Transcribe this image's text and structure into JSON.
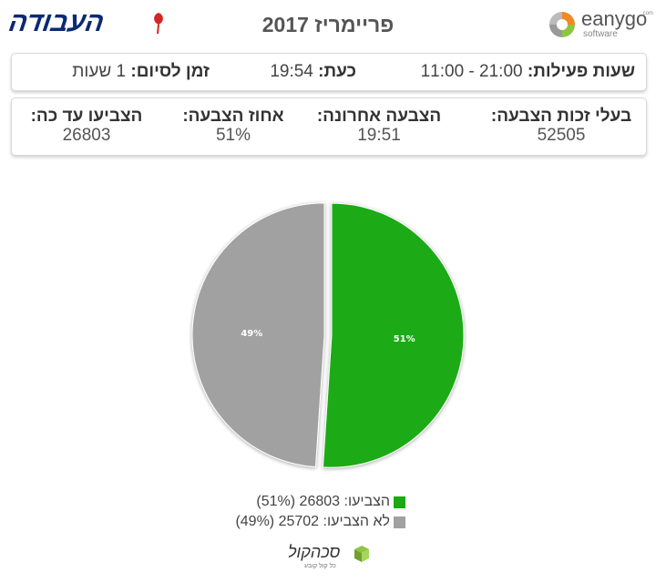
{
  "header": {
    "logo_text": "העבודה",
    "title": "פריימריז 2017",
    "brand_name": "eanygo",
    "brand_sub": "software",
    "brand_com": ".com"
  },
  "info": {
    "hours_label": "שעות פעילות:",
    "hours_value": "11:00 - 21:00",
    "now_label": "כעת:",
    "now_value": "19:54",
    "remaining_label": "זמן לסיום:",
    "remaining_value": "1 שעות"
  },
  "stats": {
    "eligible_label": "בעלי זכות הצבעה:",
    "eligible_value": "52505",
    "last_vote_label": "הצבעה אחרונה:",
    "last_vote_value": "19:51",
    "percent_label": "אחוז הצבעה:",
    "percent_value": "51%",
    "voted_label": "הצביעו עד כה:",
    "voted_value": "26803"
  },
  "chart_data": {
    "type": "pie",
    "slices": [
      {
        "name": "הצביעו",
        "value": 26803,
        "percent": 51,
        "label": "51%",
        "color": "#1aab13"
      },
      {
        "name": "לא הצביעו",
        "value": 25702,
        "percent": 49,
        "label": "49%",
        "color": "#a1a1a1"
      }
    ],
    "legend": [
      {
        "text": "הצביעו: 26803 (51%)",
        "color": "#1aab13"
      },
      {
        "text": "לא הצביעו: 25702 (49%)",
        "color": "#a1a1a1"
      }
    ],
    "legend_position": "bottom"
  },
  "footer": {
    "logo_text": "סכהקול",
    "logo_sub": "כל קול קובע"
  }
}
